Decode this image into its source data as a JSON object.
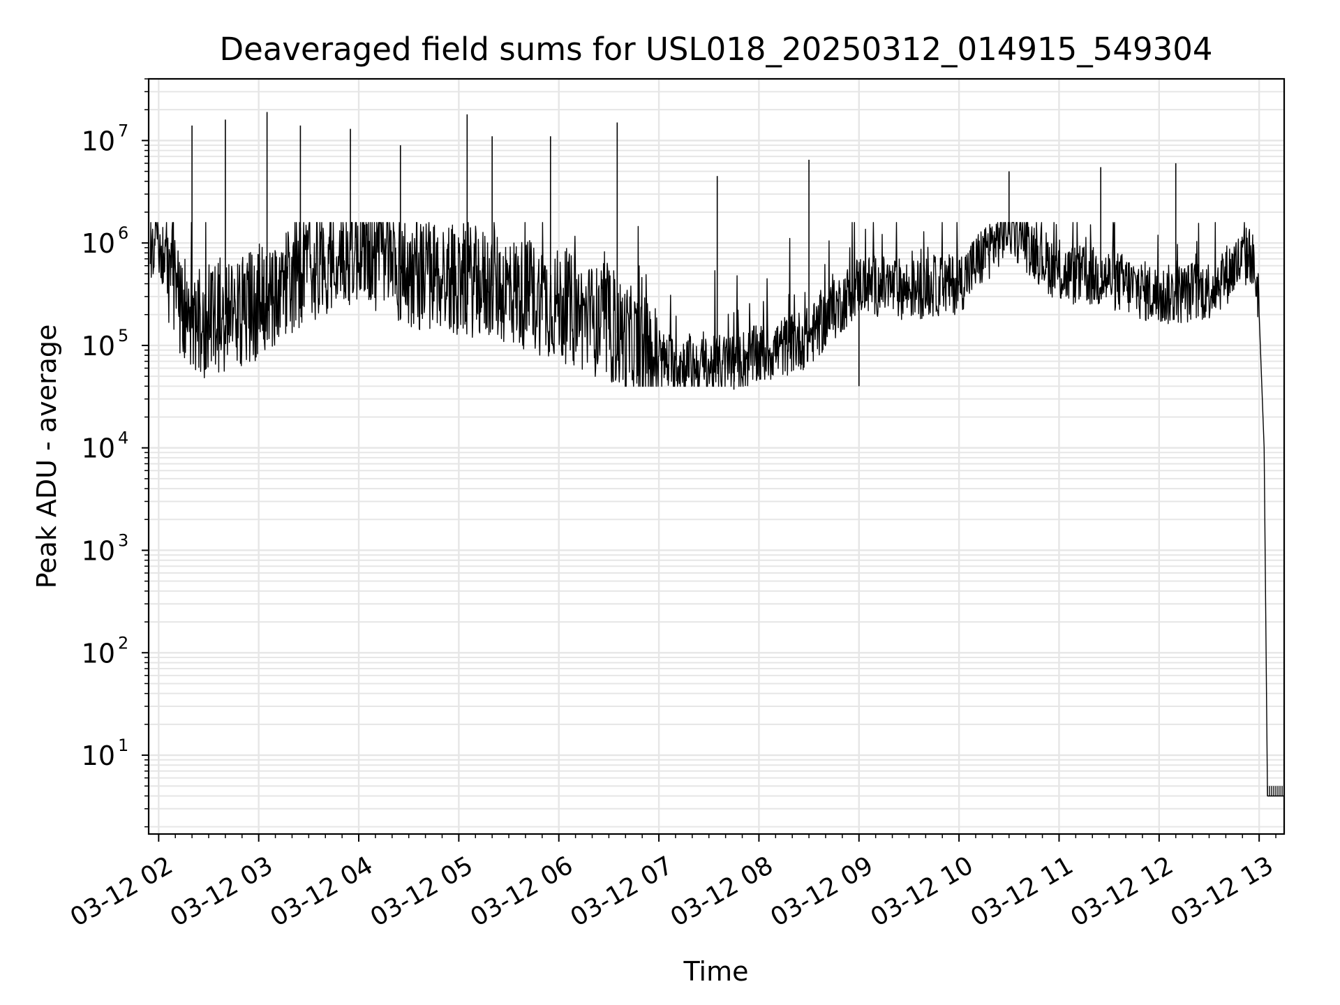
{
  "chart_data": {
    "type": "line",
    "title": "Deaveraged field sums for USL018_20250312_014915_549304",
    "xlabel": "Time",
    "ylabel": "Peak ADU - average",
    "yscale": "log",
    "ylim": [
      1.7,
      40000000
    ],
    "xlim_hours": [
      1.9,
      13.25
    ],
    "grid": true,
    "legend": "none",
    "line_color": "#000000",
    "grid_color": "#e6e6e6",
    "xticks": [
      {
        "label": "03-12 02",
        "hour": 2
      },
      {
        "label": "03-12 03",
        "hour": 3
      },
      {
        "label": "03-12 04",
        "hour": 4
      },
      {
        "label": "03-12 05",
        "hour": 5
      },
      {
        "label": "03-12 06",
        "hour": 6
      },
      {
        "label": "03-12 07",
        "hour": 7
      },
      {
        "label": "03-12 08",
        "hour": 8
      },
      {
        "label": "03-12 09",
        "hour": 9
      },
      {
        "label": "03-12 10",
        "hour": 10
      },
      {
        "label": "03-12 11",
        "hour": 11
      },
      {
        "label": "03-12 12",
        "hour": 12
      },
      {
        "label": "03-12 13",
        "hour": 13
      }
    ],
    "yticks": [
      {
        "base": "10",
        "exp": "1",
        "value": 10
      },
      {
        "base": "10",
        "exp": "2",
        "value": 100
      },
      {
        "base": "10",
        "exp": "3",
        "value": 1000
      },
      {
        "base": "10",
        "exp": "4",
        "value": 10000
      },
      {
        "base": "10",
        "exp": "5",
        "value": 100000
      },
      {
        "base": "10",
        "exp": "6",
        "value": 1000000
      },
      {
        "base": "10",
        "exp": "7",
        "value": 10000000
      }
    ],
    "series": [
      {
        "points": [
          {
            "x": "03-12 01:55",
            "y": 450000
          },
          {
            "x": "03-12 01:58",
            "y": 1200000
          },
          {
            "x": "03-12 02:05",
            "y": 600000
          },
          {
            "x": "03-12 02:20",
            "y": 150000
          },
          {
            "x": "03-12 02:40",
            "y": 200000
          },
          {
            "x": "03-12 03:00",
            "y": 250000
          },
          {
            "x": "03-12 03:30",
            "y": 600000
          },
          {
            "x": "03-12 04:00",
            "y": 900000
          },
          {
            "x": "03-12 04:30",
            "y": 500000
          },
          {
            "x": "03-12 05:00",
            "y": 450000
          },
          {
            "x": "03-12 05:30",
            "y": 350000
          },
          {
            "x": "03-12 06:00",
            "y": 250000
          },
          {
            "x": "03-12 06:30",
            "y": 150000
          },
          {
            "x": "03-12 07:00",
            "y": 70000
          },
          {
            "x": "03-12 07:30",
            "y": 60000
          },
          {
            "x": "03-12 08:00",
            "y": 80000
          },
          {
            "x": "03-12 08:30",
            "y": 120000
          },
          {
            "x": "03-12 09:00",
            "y": 400000
          },
          {
            "x": "03-12 09:30",
            "y": 350000
          },
          {
            "x": "03-12 10:00",
            "y": 400000
          },
          {
            "x": "03-12 10:30",
            "y": 1500000
          },
          {
            "x": "03-12 11:00",
            "y": 500000
          },
          {
            "x": "03-12 11:30",
            "y": 450000
          },
          {
            "x": "03-12 12:00",
            "y": 300000
          },
          {
            "x": "03-12 12:30",
            "y": 350000
          },
          {
            "x": "03-12 12:55",
            "y": 800000
          },
          {
            "x": "03-12 13:00",
            "y": 300000
          },
          {
            "x": "03-12 13:03",
            "y": 10000
          },
          {
            "x": "03-12 13:05",
            "y": 4
          },
          {
            "x": "03-12 13:15",
            "y": 4
          }
        ],
        "spikes": [
          {
            "x": "03-12 02:20",
            "y": 14000000
          },
          {
            "x": "03-12 02:40",
            "y": 16000000
          },
          {
            "x": "03-12 03:05",
            "y": 19000000
          },
          {
            "x": "03-12 03:25",
            "y": 14000000
          },
          {
            "x": "03-12 03:55",
            "y": 13000000
          },
          {
            "x": "03-12 04:25",
            "y": 9000000
          },
          {
            "x": "03-12 05:05",
            "y": 18000000
          },
          {
            "x": "03-12 05:20",
            "y": 11000000
          },
          {
            "x": "03-12 05:55",
            "y": 11000000
          },
          {
            "x": "03-12 06:35",
            "y": 15000000
          },
          {
            "x": "03-12 07:35",
            "y": 4500000
          },
          {
            "x": "03-12 08:30",
            "y": 6500000
          },
          {
            "x": "03-12 10:30",
            "y": 5000000
          },
          {
            "x": "03-12 11:25",
            "y": 5500000
          },
          {
            "x": "03-12 12:10",
            "y": 6000000
          }
        ],
        "troughs": [
          {
            "x": "03-12 07:45",
            "y": 37000
          },
          {
            "x": "03-12 09:00",
            "y": 40000
          }
        ]
      }
    ]
  }
}
